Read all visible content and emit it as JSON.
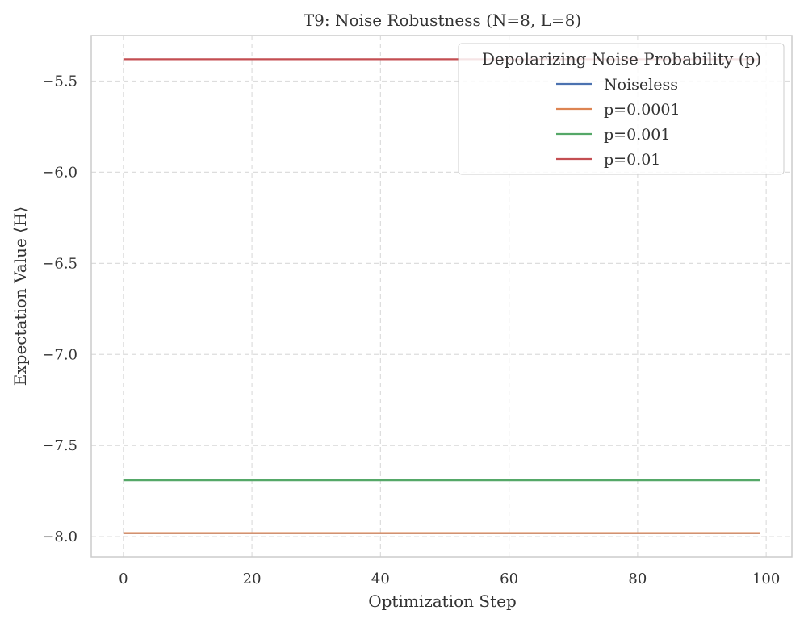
{
  "chart_data": {
    "type": "line",
    "title": "T9: Noise Robustness (N=8, L=8)",
    "xlabel": "Optimization Step",
    "ylabel": "Expectation Value ⟨H⟩",
    "xlim": [
      -5,
      104
    ],
    "ylim": [
      -8.11,
      -5.25
    ],
    "xticks": [
      0,
      20,
      40,
      60,
      80,
      100
    ],
    "xtick_labels": [
      "0",
      "20",
      "40",
      "60",
      "80",
      "100"
    ],
    "yticks": [
      -8.0,
      -7.5,
      -7.0,
      -6.5,
      -6.0,
      -5.5
    ],
    "ytick_labels": [
      "−8.0",
      "−7.5",
      "−7.0",
      "−6.5",
      "−6.0",
      "−5.5"
    ],
    "grid": true,
    "legend": {
      "title": "Depolarizing Noise Probability (p)",
      "placement": "top-right"
    },
    "series": [
      {
        "name": "Noiseless",
        "color": "#4c72b0",
        "x": [
          0,
          99
        ],
        "y": [
          -7.98,
          -7.98
        ]
      },
      {
        "name": "p=0.0001",
        "color": "#dd8452",
        "x": [
          0,
          99
        ],
        "y": [
          -7.98,
          -7.98
        ]
      },
      {
        "name": "p=0.001",
        "color": "#55a868",
        "x": [
          0,
          99
        ],
        "y": [
          -7.69,
          -7.69
        ]
      },
      {
        "name": "p=0.01",
        "color": "#c44e52",
        "x": [
          0,
          99
        ],
        "y": [
          -5.38,
          -5.38
        ]
      }
    ]
  }
}
